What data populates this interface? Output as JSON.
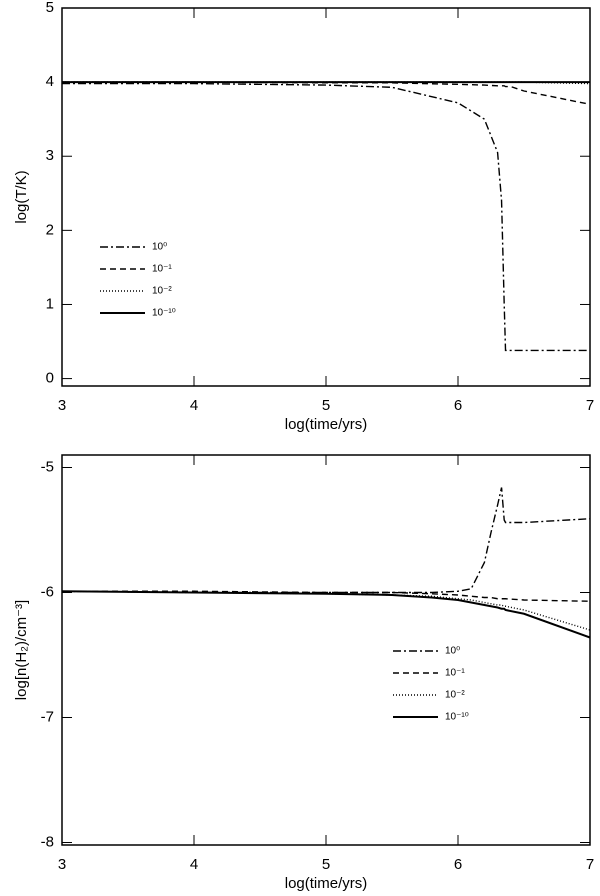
{
  "chart_data": [
    {
      "type": "line",
      "xlabel": "log(time/yrs)",
      "ylabel": "log(T/K)",
      "xlim": [
        3,
        7
      ],
      "ylim": [
        -0.1,
        5
      ],
      "xticks": [
        3,
        4,
        5,
        6,
        7
      ],
      "yticks": [
        0,
        1,
        2,
        3,
        4,
        5
      ],
      "x": [
        3,
        4,
        5,
        5.5,
        6,
        6.2,
        6.3,
        6.33,
        6.35,
        6.36,
        6.4,
        6.5,
        7
      ],
      "series": [
        {
          "name": "10⁰",
          "color": "#000",
          "dash": "8,3,2,3",
          "values": [
            3.98,
            3.98,
            3.96,
            3.93,
            3.72,
            3.5,
            3.05,
            2.4,
            1.0,
            0.38,
            0.38,
            0.38,
            0.38
          ]
        },
        {
          "name": "10⁻¹",
          "color": "#000",
          "dash": "6,4",
          "values": [
            4,
            4,
            3.99,
            3.99,
            3.97,
            3.96,
            3.95,
            3.95,
            3.95,
            3.94,
            3.94,
            3.88,
            3.7
          ]
        },
        {
          "name": "10⁻²",
          "color": "#000",
          "dash": "1,2",
          "values": [
            4,
            4,
            4,
            4,
            4,
            4,
            4,
            4,
            4,
            4,
            4,
            4,
            3.98
          ]
        },
        {
          "name": "10⁻¹⁰",
          "color": "#000",
          "dash": "none",
          "values": [
            4,
            4,
            4,
            4,
            4,
            4,
            4,
            4,
            4,
            4,
            4,
            4,
            4
          ]
        }
      ]
    },
    {
      "type": "line",
      "xlabel": "log(time/yrs)",
      "ylabel": "log[n(H₂)/cm⁻³]",
      "xlim": [
        3,
        7
      ],
      "ylim": [
        -8.02,
        -4.9
      ],
      "xticks": [
        3,
        4,
        5,
        6,
        7
      ],
      "yticks": [
        -5,
        -6,
        -7,
        -8
      ],
      "x": [
        3,
        4,
        5,
        5.5,
        5.8,
        6,
        6.1,
        6.2,
        6.25,
        6.3,
        6.33,
        6.35,
        6.36,
        6.5,
        7
      ],
      "series": [
        {
          "name": "10⁰",
          "color": "#000",
          "dash": "8,3,2,3",
          "values": [
            -5.99,
            -6,
            -6,
            -6,
            -6,
            -5.99,
            -5.97,
            -5.76,
            -5.52,
            -5.3,
            -5.16,
            -5.42,
            -5.44,
            -5.44,
            -5.41
          ]
        },
        {
          "name": "10⁻¹",
          "color": "#000",
          "dash": "6,4",
          "values": [
            -5.99,
            -5.99,
            -6,
            -6,
            -6.01,
            -6.02,
            -6.03,
            -6.04,
            -6.04,
            -6.05,
            -6.05,
            -6.05,
            -6.05,
            -6.06,
            -6.07
          ]
        },
        {
          "name": "10⁻²",
          "color": "#000",
          "dash": "1,2",
          "values": [
            -5.99,
            -6,
            -6.01,
            -6.02,
            -6.03,
            -6.05,
            -6.06,
            -6.08,
            -6.09,
            -6.1,
            -6.1,
            -6.11,
            -6.11,
            -6.14,
            -6.3
          ]
        },
        {
          "name": "10⁻¹⁰",
          "color": "#000",
          "dash": "none",
          "values": [
            -5.99,
            -6,
            -6.01,
            -6.02,
            -6.04,
            -6.06,
            -6.08,
            -6.1,
            -6.11,
            -6.12,
            -6.13,
            -6.13,
            -6.14,
            -6.17,
            -6.36
          ]
        }
      ]
    }
  ]
}
